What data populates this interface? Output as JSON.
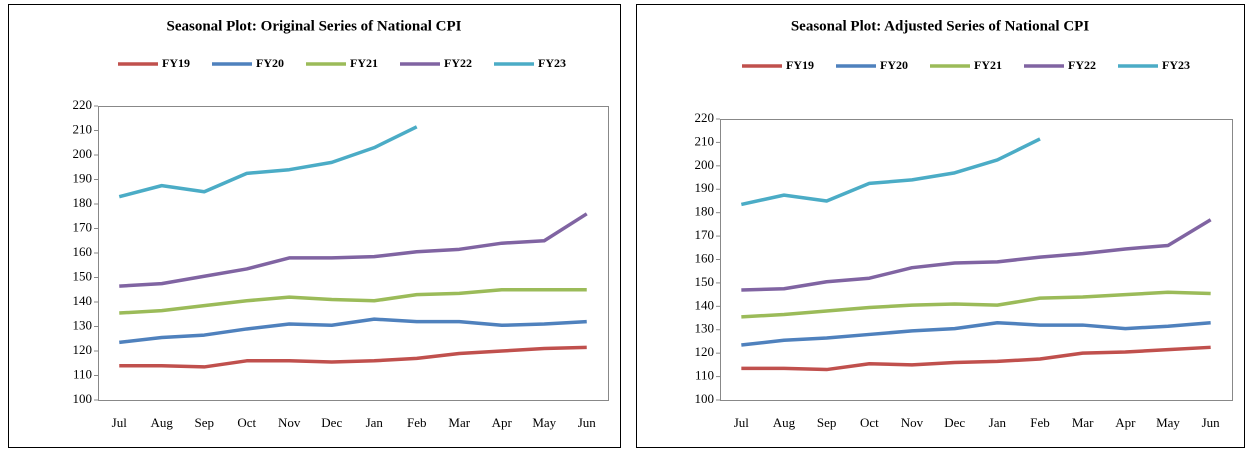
{
  "chart_data": [
    {
      "type": "line",
      "title": "Seasonal Plot: Original Series of  National CPI",
      "categories": [
        "Jul",
        "Aug",
        "Sep",
        "Oct",
        "Nov",
        "Dec",
        "Jan",
        "Feb",
        "Mar",
        "Apr",
        "May",
        "Jun"
      ],
      "ylim": [
        100,
        220
      ],
      "yticks": [
        100,
        110,
        120,
        130,
        140,
        150,
        160,
        170,
        180,
        190,
        200,
        210,
        220
      ],
      "series": [
        {
          "name": "FY19",
          "color": "#c0504d",
          "values": [
            114,
            114,
            113.5,
            116,
            116,
            115.5,
            116,
            117,
            119,
            120,
            121,
            121.5
          ]
        },
        {
          "name": "FY20",
          "color": "#4f81bd",
          "values": [
            123.5,
            125.5,
            126.5,
            129,
            131,
            130.5,
            133,
            132,
            132,
            130.5,
            131,
            132
          ]
        },
        {
          "name": "FY21",
          "color": "#9bbb59",
          "values": [
            135.5,
            136.5,
            138.5,
            140.5,
            142,
            141,
            140.5,
            143,
            143.5,
            145,
            145,
            145
          ]
        },
        {
          "name": "FY22",
          "color": "#8064a2",
          "values": [
            146.5,
            147.5,
            150.5,
            153.5,
            158,
            158,
            158.5,
            160.5,
            161.5,
            164,
            165,
            176
          ]
        },
        {
          "name": "FY23",
          "color": "#4bacc6",
          "values": [
            183,
            187.5,
            185,
            192.5,
            194,
            197,
            203,
            211.5,
            null,
            null,
            null,
            null
          ]
        }
      ]
    },
    {
      "type": "line",
      "title": "Seasonal Plot: Adjusted Series of  National CPI",
      "categories": [
        "Jul",
        "Aug",
        "Sep",
        "Oct",
        "Nov",
        "Dec",
        "Jan",
        "Feb",
        "Mar",
        "Apr",
        "May",
        "Jun"
      ],
      "ylim": [
        100,
        220
      ],
      "yticks": [
        100,
        110,
        120,
        130,
        140,
        150,
        160,
        170,
        180,
        190,
        200,
        210,
        220
      ],
      "series": [
        {
          "name": "FY19",
          "color": "#c0504d",
          "values": [
            113.5,
            113.5,
            113,
            115.5,
            115,
            116,
            116.5,
            117.5,
            120,
            120.5,
            121.5,
            122.5
          ]
        },
        {
          "name": "FY20",
          "color": "#4f81bd",
          "values": [
            123.5,
            125.5,
            126.5,
            128,
            129.5,
            130.5,
            133,
            132,
            132,
            130.5,
            131.5,
            133
          ]
        },
        {
          "name": "FY21",
          "color": "#9bbb59",
          "values": [
            135.5,
            136.5,
            138,
            139.5,
            140.5,
            141,
            140.5,
            143.5,
            144,
            145,
            146,
            145.5
          ]
        },
        {
          "name": "FY22",
          "color": "#8064a2",
          "values": [
            147,
            147.5,
            150.5,
            152,
            156.5,
            158.5,
            159,
            161,
            162.5,
            164.5,
            166,
            177
          ]
        },
        {
          "name": "FY23",
          "color": "#4bacc6",
          "values": [
            183.5,
            187.5,
            185,
            192.5,
            194,
            197,
            202.5,
            211.5,
            null,
            null,
            null,
            null
          ]
        }
      ]
    }
  ]
}
